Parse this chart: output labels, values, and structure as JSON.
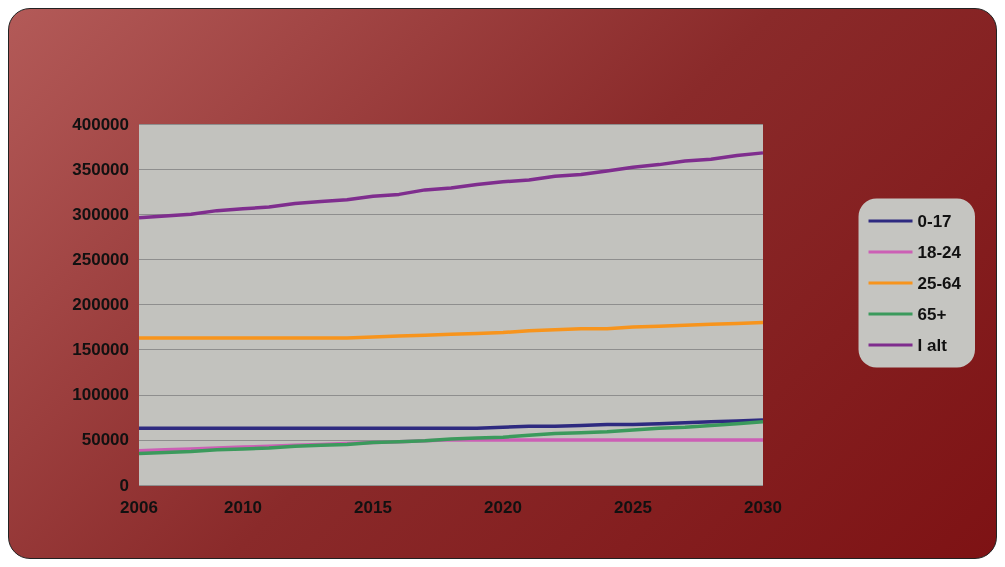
{
  "chart_data": {
    "type": "line",
    "x": [
      2006,
      2007,
      2008,
      2009,
      2010,
      2011,
      2012,
      2013,
      2014,
      2015,
      2016,
      2017,
      2018,
      2019,
      2020,
      2021,
      2022,
      2023,
      2024,
      2025,
      2026,
      2027,
      2028,
      2029,
      2030
    ],
    "xlim": [
      2006,
      2030
    ],
    "xticks": [
      2006,
      2010,
      2015,
      2020,
      2025,
      2030
    ],
    "ylim": [
      0,
      400000
    ],
    "yticks": [
      0,
      50000,
      100000,
      150000,
      200000,
      250000,
      300000,
      350000,
      400000
    ],
    "grid": "y",
    "legend": "right",
    "marker": "none",
    "line_style": "solid",
    "series": [
      {
        "name": "0-17",
        "color": "#2e2a80",
        "values": [
          63000,
          63000,
          63000,
          63000,
          63000,
          63000,
          63000,
          63000,
          63000,
          63000,
          63000,
          63000,
          63000,
          63000,
          64000,
          65000,
          65000,
          66000,
          67000,
          67000,
          68000,
          69000,
          70000,
          71000,
          72000
        ]
      },
      {
        "name": "18-24",
        "color": "#cc5fb5",
        "values": [
          38000,
          39000,
          40000,
          41000,
          42000,
          43000,
          44000,
          45000,
          46000,
          47000,
          48000,
          49000,
          50000,
          50000,
          50000,
          50000,
          50000,
          50000,
          50000,
          50000,
          50000,
          50000,
          50000,
          50000,
          50000
        ]
      },
      {
        "name": "25-64",
        "color": "#f7941d",
        "values": [
          163000,
          163000,
          163000,
          163000,
          163000,
          163000,
          163000,
          163000,
          163000,
          164000,
          165000,
          166000,
          167000,
          168000,
          169000,
          171000,
          172000,
          173000,
          173000,
          175000,
          176000,
          177000,
          178000,
          179000,
          180000
        ]
      },
      {
        "name": "65+",
        "color": "#3b9a5c",
        "values": [
          35000,
          36000,
          37000,
          39000,
          40000,
          41000,
          43000,
          44000,
          45000,
          47000,
          48000,
          49000,
          51000,
          52000,
          53000,
          55000,
          57000,
          58000,
          59000,
          61000,
          63000,
          64000,
          66000,
          68000,
          70000
        ]
      },
      {
        "name": "I alt",
        "color": "#7f2d8e",
        "values": [
          296000,
          298000,
          300000,
          304000,
          306000,
          308000,
          312000,
          314000,
          316000,
          320000,
          322000,
          327000,
          329000,
          333000,
          336000,
          338000,
          342000,
          344000,
          348000,
          352000,
          355000,
          359000,
          361000,
          365000,
          368000
        ]
      }
    ]
  }
}
